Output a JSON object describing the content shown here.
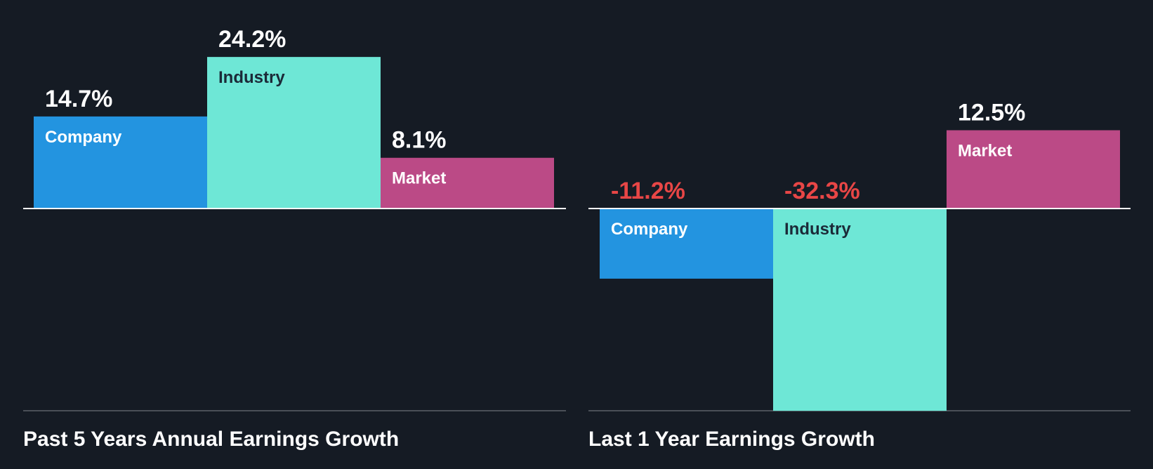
{
  "colors": {
    "background": "#151b24",
    "company": "#2394e0",
    "industry": "#6ee7d6",
    "market": "#bb4a86",
    "positive_label": "#ffffff",
    "negative_label": "#e84646",
    "axis": "#ffffff",
    "baseline": "#4a4f57"
  },
  "chart_data": [
    {
      "type": "bar",
      "title": "Past 5 Years Annual Earnings Growth",
      "categories": [
        "Company",
        "Industry",
        "Market"
      ],
      "values": [
        14.7,
        24.2,
        8.1
      ],
      "value_labels": [
        "14.7%",
        "24.2%",
        "8.1%"
      ],
      "ylim": [
        -32.3,
        24.2
      ]
    },
    {
      "type": "bar",
      "title": "Last 1 Year Earnings Growth",
      "categories": [
        "Company",
        "Industry",
        "Market"
      ],
      "values": [
        -11.2,
        -32.3,
        12.5
      ],
      "value_labels": [
        "-11.2%",
        "-32.3%",
        "12.5%"
      ],
      "ylim": [
        -32.3,
        24.2
      ]
    }
  ]
}
